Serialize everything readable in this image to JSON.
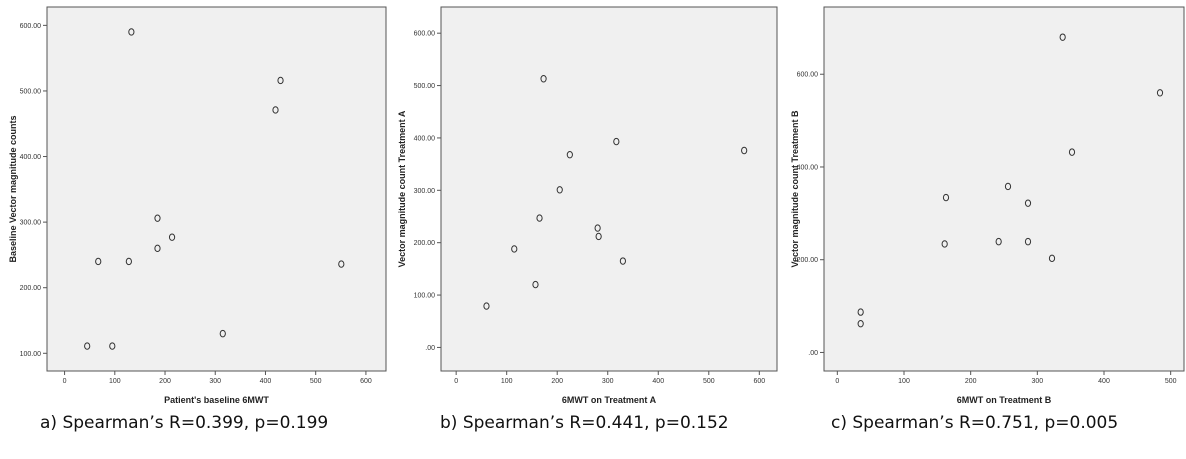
{
  "chart_data": [
    {
      "type": "scatter",
      "xlabel": "Patient's baseline 6MWT",
      "ylabel": "Baseline Vector magnitude counts",
      "xlim": [
        -35,
        640
      ],
      "ylim": [
        73,
        628
      ],
      "xticks": [
        0,
        100,
        200,
        300,
        400,
        500,
        600
      ],
      "yticks": [
        100,
        200,
        300,
        400,
        500,
        600
      ],
      "xtick_labels": [
        "0",
        "100",
        "200",
        "300",
        "400",
        "500",
        "600"
      ],
      "ytick_labels": [
        "100.00",
        "200.00",
        "300.00",
        "400.00",
        "500.00",
        "600.00"
      ],
      "caption": "a) Spearman’s R=0.399, p=0.199",
      "points": [
        {
          "x": 133,
          "y": 590
        },
        {
          "x": 430,
          "y": 516
        },
        {
          "x": 420,
          "y": 471
        },
        {
          "x": 185,
          "y": 306
        },
        {
          "x": 214,
          "y": 277
        },
        {
          "x": 185,
          "y": 260
        },
        {
          "x": 67,
          "y": 240
        },
        {
          "x": 128,
          "y": 240
        },
        {
          "x": 551,
          "y": 236
        },
        {
          "x": 315,
          "y": 130
        },
        {
          "x": 45,
          "y": 111
        },
        {
          "x": 95,
          "y": 111
        }
      ]
    },
    {
      "type": "scatter",
      "xlabel": "6MWT on Treatment A",
      "ylabel": "Vector magnitude count Treatment A",
      "xlim": [
        -30,
        635
      ],
      "ylim": [
        -45,
        650
      ],
      "xticks": [
        0,
        100,
        200,
        300,
        400,
        500,
        600
      ],
      "yticks": [
        0,
        100,
        200,
        300,
        400,
        500,
        600
      ],
      "xtick_labels": [
        "0",
        "100",
        "200",
        "300",
        "400",
        "500",
        "600"
      ],
      "ytick_labels": [
        ".00",
        "100.00",
        "200.00",
        "300.00",
        "400.00",
        "500.00",
        "600.00"
      ],
      "caption": "b) Spearman’s R=0.441, p=0.152",
      "points": [
        {
          "x": 173,
          "y": 513
        },
        {
          "x": 317,
          "y": 393
        },
        {
          "x": 570,
          "y": 376
        },
        {
          "x": 225,
          "y": 368
        },
        {
          "x": 205,
          "y": 301
        },
        {
          "x": 165,
          "y": 247
        },
        {
          "x": 280,
          "y": 228
        },
        {
          "x": 282,
          "y": 212
        },
        {
          "x": 115,
          "y": 188
        },
        {
          "x": 330,
          "y": 165
        },
        {
          "x": 157,
          "y": 120
        },
        {
          "x": 60,
          "y": 79
        }
      ]
    },
    {
      "type": "scatter",
      "xlabel": "6MWT on Treatment B",
      "ylabel": "Vector magnitude count Treatment B",
      "xlim": [
        -20,
        520
      ],
      "ylim": [
        -40,
        745
      ],
      "xticks": [
        0,
        100,
        200,
        300,
        400,
        500
      ],
      "yticks": [
        0,
        200,
        400,
        600
      ],
      "xtick_labels": [
        "0",
        "100",
        "200",
        "300",
        "400",
        "500"
      ],
      "ytick_labels": [
        ".00",
        "200.00",
        "400.00",
        "600.00"
      ],
      "caption": "c) Spearman’s R=0.751, p=0.005",
      "points": [
        {
          "x": 338,
          "y": 680
        },
        {
          "x": 484,
          "y": 560
        },
        {
          "x": 352,
          "y": 432
        },
        {
          "x": 256,
          "y": 358
        },
        {
          "x": 163,
          "y": 334
        },
        {
          "x": 286,
          "y": 322
        },
        {
          "x": 242,
          "y": 239
        },
        {
          "x": 286,
          "y": 239
        },
        {
          "x": 161,
          "y": 234
        },
        {
          "x": 322,
          "y": 203
        },
        {
          "x": 35,
          "y": 87
        },
        {
          "x": 35,
          "y": 62
        }
      ]
    }
  ]
}
